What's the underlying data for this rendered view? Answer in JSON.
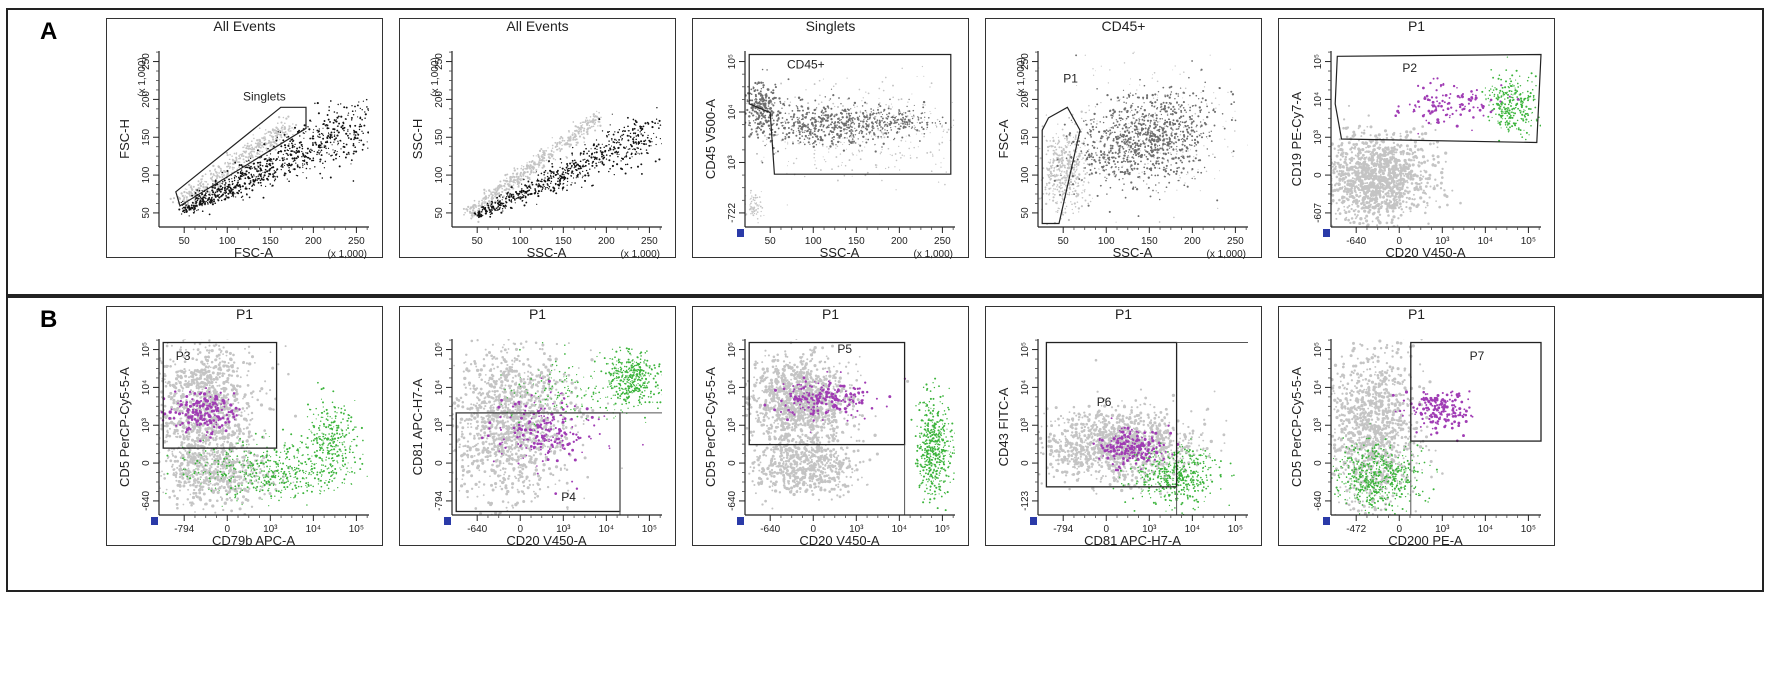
{
  "figure": {
    "rows": [
      {
        "label": "A",
        "panels": [
          {
            "id": "a1",
            "title": "All Events",
            "xlabel": "FSC-A",
            "ylabel": "FSC-H",
            "xticks": [
              "50",
              "100",
              "150",
              "200",
              "250"
            ],
            "yticks": [
              "50",
              "100",
              "150",
              "200",
              "250"
            ],
            "x_scale_note": "(x 1,000)",
            "y_scale_note": "(x 1,000)",
            "gates": [
              {
                "label": "Singlets"
              }
            ],
            "populations": [
              "black",
              "lightgray"
            ]
          },
          {
            "id": "a2",
            "title": "All Events",
            "xlabel": "SSC-A",
            "ylabel": "SSC-H",
            "xticks": [
              "50",
              "100",
              "150",
              "200",
              "250"
            ],
            "yticks": [
              "50",
              "100",
              "150",
              "200",
              "250"
            ],
            "x_scale_note": "(x 1,000)",
            "y_scale_note": "(x 1,000)",
            "gates": [],
            "populations": [
              "black",
              "lightgray"
            ]
          },
          {
            "id": "a3",
            "title": "Singlets",
            "xlabel": "SSC-A",
            "ylabel": "CD45 V500-A",
            "xticks": [
              "50",
              "100",
              "150",
              "200",
              "250"
            ],
            "yticks": [
              "-722",
              "10³",
              "10⁴",
              "10⁵"
            ],
            "x_scale_note": "(x 1,000)",
            "gates": [
              {
                "label": "CD45+"
              }
            ],
            "populations": [
              "darkgray",
              "lightgray"
            ]
          },
          {
            "id": "a4",
            "title": "CD45+",
            "xlabel": "SSC-A",
            "ylabel": "FSC-A",
            "xticks": [
              "50",
              "100",
              "150",
              "200",
              "250"
            ],
            "yticks": [
              "50",
              "100",
              "150",
              "200",
              "250"
            ],
            "x_scale_note": "(x 1,000)",
            "y_scale_note": "(x 1,000)",
            "gates": [
              {
                "label": "P1"
              }
            ],
            "populations": [
              "darkgray",
              "lightgray"
            ]
          },
          {
            "id": "a5",
            "title": "P1",
            "xlabel": "CD20 V450-A",
            "ylabel": "CD19 PE-Cy7-A",
            "xticks": [
              "-640",
              "0",
              "10³",
              "10⁴",
              "10⁵"
            ],
            "yticks": [
              "-607",
              "0",
              "10³",
              "10⁴",
              "10⁵"
            ],
            "gates": [
              {
                "label": "P2"
              }
            ],
            "populations": [
              "lightgray",
              "green",
              "purple"
            ]
          }
        ]
      },
      {
        "label": "B",
        "panels": [
          {
            "id": "b1",
            "title": "P1",
            "xlabel": "CD79b APC-A",
            "ylabel": "CD5 PerCP-Cy5-5-A",
            "xticks": [
              "-794",
              "0",
              "10³",
              "10⁴",
              "10⁵"
            ],
            "yticks": [
              "-640",
              "0",
              "10³",
              "10⁴",
              "10⁵"
            ],
            "gates": [
              {
                "label": "P3"
              }
            ],
            "populations": [
              "lightgray",
              "green",
              "purple"
            ]
          },
          {
            "id": "b2",
            "title": "P1",
            "xlabel": "CD20 V450-A",
            "ylabel": "CD81 APC-H7-A",
            "xticks": [
              "-640",
              "0",
              "10³",
              "10⁴",
              "10⁵"
            ],
            "yticks": [
              "-794",
              "0",
              "10³",
              "10⁴",
              "10⁵"
            ],
            "gates": [
              {
                "label": "P4"
              }
            ],
            "populations": [
              "lightgray",
              "green",
              "purple"
            ]
          },
          {
            "id": "b3",
            "title": "P1",
            "xlabel": "CD20 V450-A",
            "ylabel": "CD5 PerCP-Cy5-5-A",
            "xticks": [
              "-640",
              "0",
              "10³",
              "10⁴",
              "10⁵"
            ],
            "yticks": [
              "-640",
              "0",
              "10³",
              "10⁴",
              "10⁵"
            ],
            "gates": [
              {
                "label": "P5"
              }
            ],
            "populations": [
              "lightgray",
              "green",
              "purple"
            ]
          },
          {
            "id": "b4",
            "title": "P1",
            "xlabel": "CD81 APC-H7-A",
            "ylabel": "CD43 FITC-A",
            "xticks": [
              "-794",
              "0",
              "10³",
              "10⁴",
              "10⁵"
            ],
            "yticks": [
              "-123",
              "0",
              "10³",
              "10⁴",
              "10⁵"
            ],
            "gates": [
              {
                "label": "P6"
              }
            ],
            "populations": [
              "lightgray",
              "green",
              "purple"
            ]
          },
          {
            "id": "b5",
            "title": "P1",
            "xlabel": "CD200 PE-A",
            "ylabel": "CD5 PerCP-Cy5-5-A",
            "xticks": [
              "-472",
              "0",
              "10³",
              "10⁴",
              "10⁵"
            ],
            "yticks": [
              "-640",
              "0",
              "10³",
              "10⁴",
              "10⁵"
            ],
            "gates": [
              {
                "label": "P7"
              }
            ],
            "populations": [
              "lightgray",
              "green",
              "purple"
            ]
          }
        ]
      }
    ],
    "colors": {
      "black": "#111111",
      "darkgray": "#6e6e6e",
      "lightgray": "#c4c4c4",
      "green": "#3cb43c",
      "purple": "#a03cb4",
      "gate": "#222222",
      "logo": "#2a3aa8"
    }
  }
}
